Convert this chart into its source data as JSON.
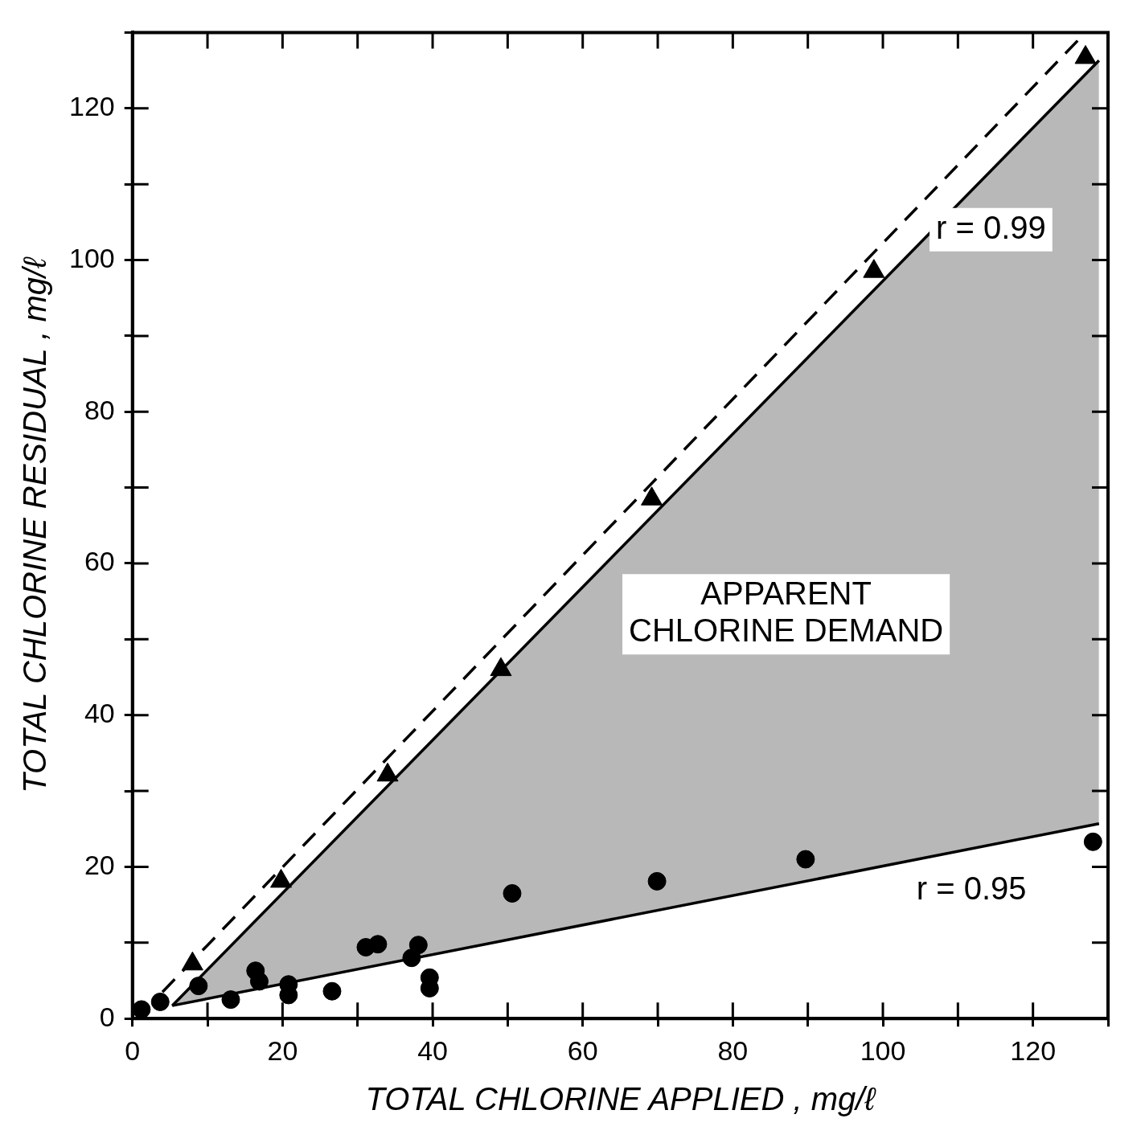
{
  "chart_data": {
    "type": "scatter",
    "xlabel": "TOTAL CHLORINE APPLIED , mg/ℓ",
    "ylabel": "TOTAL CHLORINE RESIDUAL , mg/ℓ",
    "xlim": [
      0,
      130
    ],
    "ylim": [
      0,
      130
    ],
    "xticks": [
      0,
      {
        "value": 10,
        "label": null
      },
      20,
      {
        "value": 30,
        "label": null
      },
      40,
      {
        "value": 50,
        "label": null
      },
      60,
      {
        "value": 70,
        "label": null
      },
      80,
      {
        "value": 90,
        "label": null
      },
      100,
      {
        "value": 110,
        "label": null
      },
      120,
      {
        "value": 130,
        "label": null
      }
    ],
    "yticks": [
      0,
      {
        "value": 10,
        "label": null
      },
      20,
      {
        "value": 30,
        "label": null
      },
      40,
      {
        "value": 50,
        "label": null
      },
      60,
      {
        "value": 70,
        "label": null
      },
      80,
      {
        "value": 90,
        "label": null
      },
      100,
      {
        "value": 110,
        "label": null
      },
      120,
      {
        "value": 130,
        "label": null
      }
    ],
    "grid": false,
    "legend": false,
    "series": [
      {
        "type": "line",
        "color": "#000000",
        "marker": "none",
        "line_style": "solid",
        "x": [
          5.3,
          128.8
        ],
        "values": [
          1.7,
          126.3
        ],
        "lower": [
          1.7,
          25.7
        ],
        "upper": [
          1.7,
          126.3
        ]
      },
      {
        "type": "line",
        "color": "#000000",
        "marker": "none",
        "line_style": "solid",
        "x": [
          5.3,
          128.8
        ],
        "values": [
          1.7,
          25.7
        ]
      },
      {
        "type": "line",
        "color": "#000000",
        "marker": "none",
        "line_style": "dashed",
        "x": [
          4,
          127
        ],
        "values": [
          3.5,
          130
        ]
      },
      {
        "color": "#000000",
        "marker": "triangle",
        "x": [
          8,
          19.8,
          34,
          49.1,
          69.2,
          98.8,
          127
        ],
        "values": [
          7.2,
          18.1,
          32.1,
          46,
          68.5,
          98.5,
          126.7
        ]
      },
      {
        "color": "#000000",
        "marker": "circle",
        "x": [
          1.2,
          3.7,
          8.8,
          13.1,
          16.4,
          16.9,
          20.8,
          20.8,
          26.6,
          31.1,
          32.7,
          37.2,
          38.1,
          39.6,
          39.6,
          50.6,
          69.9,
          89.7,
          128
        ],
        "values": [
          1.2,
          2.2,
          4.3,
          2.5,
          6.3,
          4.9,
          4.5,
          3.1,
          3.6,
          9.4,
          9.8,
          8.0,
          9.7,
          5.4,
          4.0,
          16.5,
          18.1,
          21.0,
          23.3
        ]
      }
    ],
    "annotations": [
      "r = 0.99",
      "r = 0.95",
      "APPARENT\nCHLORINE DEMAND"
    ]
  }
}
